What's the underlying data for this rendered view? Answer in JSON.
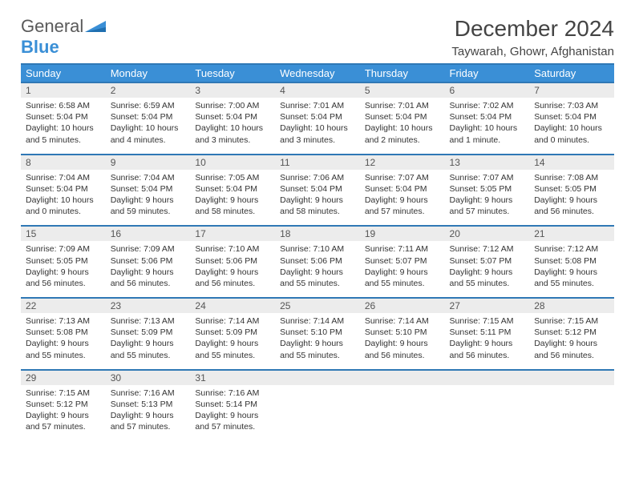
{
  "brand": {
    "name1": "General",
    "name2": "Blue"
  },
  "title": "December 2024",
  "location": "Taywarah, Ghowr, Afghanistan",
  "colors": {
    "header_bg": "#3a8fd6",
    "header_border": "#2f78b5",
    "daynum_bg": "#ececec",
    "text": "#333333",
    "page_bg": "#ffffff"
  },
  "typography": {
    "title_fontsize": 28,
    "location_fontsize": 15,
    "dayhead_fontsize": 13,
    "daynum_fontsize": 12,
    "body_fontsize": 10.5
  },
  "day_headers": [
    "Sunday",
    "Monday",
    "Tuesday",
    "Wednesday",
    "Thursday",
    "Friday",
    "Saturday"
  ],
  "weeks": [
    [
      {
        "num": "1",
        "sunrise": "Sunrise: 6:58 AM",
        "sunset": "Sunset: 5:04 PM",
        "day1": "Daylight: 10 hours",
        "day2": "and 5 minutes."
      },
      {
        "num": "2",
        "sunrise": "Sunrise: 6:59 AM",
        "sunset": "Sunset: 5:04 PM",
        "day1": "Daylight: 10 hours",
        "day2": "and 4 minutes."
      },
      {
        "num": "3",
        "sunrise": "Sunrise: 7:00 AM",
        "sunset": "Sunset: 5:04 PM",
        "day1": "Daylight: 10 hours",
        "day2": "and 3 minutes."
      },
      {
        "num": "4",
        "sunrise": "Sunrise: 7:01 AM",
        "sunset": "Sunset: 5:04 PM",
        "day1": "Daylight: 10 hours",
        "day2": "and 3 minutes."
      },
      {
        "num": "5",
        "sunrise": "Sunrise: 7:01 AM",
        "sunset": "Sunset: 5:04 PM",
        "day1": "Daylight: 10 hours",
        "day2": "and 2 minutes."
      },
      {
        "num": "6",
        "sunrise": "Sunrise: 7:02 AM",
        "sunset": "Sunset: 5:04 PM",
        "day1": "Daylight: 10 hours",
        "day2": "and 1 minute."
      },
      {
        "num": "7",
        "sunrise": "Sunrise: 7:03 AM",
        "sunset": "Sunset: 5:04 PM",
        "day1": "Daylight: 10 hours",
        "day2": "and 0 minutes."
      }
    ],
    [
      {
        "num": "8",
        "sunrise": "Sunrise: 7:04 AM",
        "sunset": "Sunset: 5:04 PM",
        "day1": "Daylight: 10 hours",
        "day2": "and 0 minutes."
      },
      {
        "num": "9",
        "sunrise": "Sunrise: 7:04 AM",
        "sunset": "Sunset: 5:04 PM",
        "day1": "Daylight: 9 hours",
        "day2": "and 59 minutes."
      },
      {
        "num": "10",
        "sunrise": "Sunrise: 7:05 AM",
        "sunset": "Sunset: 5:04 PM",
        "day1": "Daylight: 9 hours",
        "day2": "and 58 minutes."
      },
      {
        "num": "11",
        "sunrise": "Sunrise: 7:06 AM",
        "sunset": "Sunset: 5:04 PM",
        "day1": "Daylight: 9 hours",
        "day2": "and 58 minutes."
      },
      {
        "num": "12",
        "sunrise": "Sunrise: 7:07 AM",
        "sunset": "Sunset: 5:04 PM",
        "day1": "Daylight: 9 hours",
        "day2": "and 57 minutes."
      },
      {
        "num": "13",
        "sunrise": "Sunrise: 7:07 AM",
        "sunset": "Sunset: 5:05 PM",
        "day1": "Daylight: 9 hours",
        "day2": "and 57 minutes."
      },
      {
        "num": "14",
        "sunrise": "Sunrise: 7:08 AM",
        "sunset": "Sunset: 5:05 PM",
        "day1": "Daylight: 9 hours",
        "day2": "and 56 minutes."
      }
    ],
    [
      {
        "num": "15",
        "sunrise": "Sunrise: 7:09 AM",
        "sunset": "Sunset: 5:05 PM",
        "day1": "Daylight: 9 hours",
        "day2": "and 56 minutes."
      },
      {
        "num": "16",
        "sunrise": "Sunrise: 7:09 AM",
        "sunset": "Sunset: 5:06 PM",
        "day1": "Daylight: 9 hours",
        "day2": "and 56 minutes."
      },
      {
        "num": "17",
        "sunrise": "Sunrise: 7:10 AM",
        "sunset": "Sunset: 5:06 PM",
        "day1": "Daylight: 9 hours",
        "day2": "and 56 minutes."
      },
      {
        "num": "18",
        "sunrise": "Sunrise: 7:10 AM",
        "sunset": "Sunset: 5:06 PM",
        "day1": "Daylight: 9 hours",
        "day2": "and 55 minutes."
      },
      {
        "num": "19",
        "sunrise": "Sunrise: 7:11 AM",
        "sunset": "Sunset: 5:07 PM",
        "day1": "Daylight: 9 hours",
        "day2": "and 55 minutes."
      },
      {
        "num": "20",
        "sunrise": "Sunrise: 7:12 AM",
        "sunset": "Sunset: 5:07 PM",
        "day1": "Daylight: 9 hours",
        "day2": "and 55 minutes."
      },
      {
        "num": "21",
        "sunrise": "Sunrise: 7:12 AM",
        "sunset": "Sunset: 5:08 PM",
        "day1": "Daylight: 9 hours",
        "day2": "and 55 minutes."
      }
    ],
    [
      {
        "num": "22",
        "sunrise": "Sunrise: 7:13 AM",
        "sunset": "Sunset: 5:08 PM",
        "day1": "Daylight: 9 hours",
        "day2": "and 55 minutes."
      },
      {
        "num": "23",
        "sunrise": "Sunrise: 7:13 AM",
        "sunset": "Sunset: 5:09 PM",
        "day1": "Daylight: 9 hours",
        "day2": "and 55 minutes."
      },
      {
        "num": "24",
        "sunrise": "Sunrise: 7:14 AM",
        "sunset": "Sunset: 5:09 PM",
        "day1": "Daylight: 9 hours",
        "day2": "and 55 minutes."
      },
      {
        "num": "25",
        "sunrise": "Sunrise: 7:14 AM",
        "sunset": "Sunset: 5:10 PM",
        "day1": "Daylight: 9 hours",
        "day2": "and 55 minutes."
      },
      {
        "num": "26",
        "sunrise": "Sunrise: 7:14 AM",
        "sunset": "Sunset: 5:10 PM",
        "day1": "Daylight: 9 hours",
        "day2": "and 56 minutes."
      },
      {
        "num": "27",
        "sunrise": "Sunrise: 7:15 AM",
        "sunset": "Sunset: 5:11 PM",
        "day1": "Daylight: 9 hours",
        "day2": "and 56 minutes."
      },
      {
        "num": "28",
        "sunrise": "Sunrise: 7:15 AM",
        "sunset": "Sunset: 5:12 PM",
        "day1": "Daylight: 9 hours",
        "day2": "and 56 minutes."
      }
    ],
    [
      {
        "num": "29",
        "sunrise": "Sunrise: 7:15 AM",
        "sunset": "Sunset: 5:12 PM",
        "day1": "Daylight: 9 hours",
        "day2": "and 57 minutes."
      },
      {
        "num": "30",
        "sunrise": "Sunrise: 7:16 AM",
        "sunset": "Sunset: 5:13 PM",
        "day1": "Daylight: 9 hours",
        "day2": "and 57 minutes."
      },
      {
        "num": "31",
        "sunrise": "Sunrise: 7:16 AM",
        "sunset": "Sunset: 5:14 PM",
        "day1": "Daylight: 9 hours",
        "day2": "and 57 minutes."
      },
      null,
      null,
      null,
      null
    ]
  ]
}
